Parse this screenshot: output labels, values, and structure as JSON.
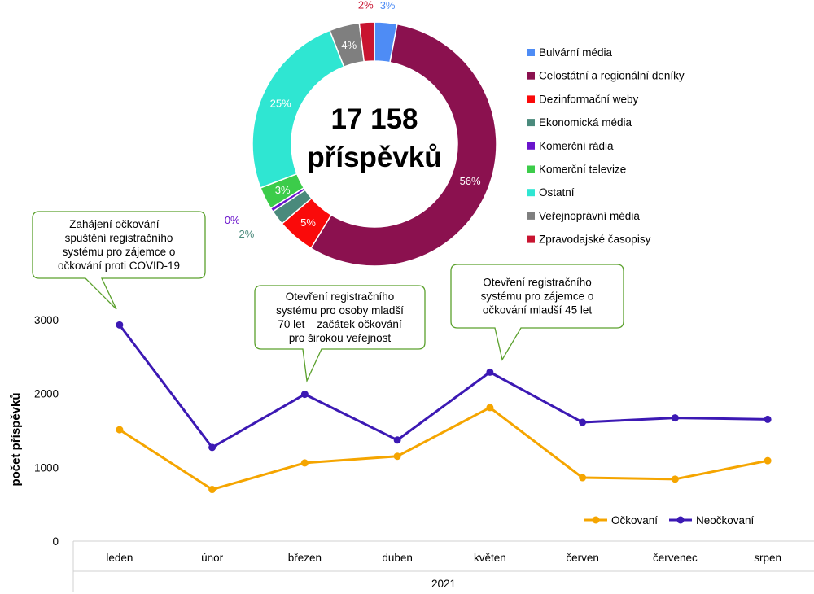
{
  "donut": {
    "center_line1": "17 158",
    "center_line2": "příspěvků"
  },
  "legend_items": [
    {
      "label": "Bulvární média",
      "color": "#4e8cf5"
    },
    {
      "label": "Celostátní a regionální deníky",
      "color": "#8b114f"
    },
    {
      "label": "Dezinformační weby",
      "color": "#fa0a0a"
    },
    {
      "label": "Ekonomická média",
      "color": "#4a8a7c"
    },
    {
      "label": "Komerční rádia",
      "color": "#6a14cc"
    },
    {
      "label": "Komerční televize",
      "color": "#3ccc4a"
    },
    {
      "label": "Ostatní",
      "color": "#2fe6d2"
    },
    {
      "label": "Veřejnoprávní média",
      "color": "#7f7f7f"
    },
    {
      "label": "Zpravodajské časopisy",
      "color": "#c81430"
    }
  ],
  "callouts": [
    {
      "lines": [
        "Zahájení očkování –",
        "spuštění registračního",
        "systému pro zájemce o",
        "očkování proti COVID-19"
      ]
    },
    {
      "lines": [
        "Otevření registračního",
        "systému pro osoby mladší",
        "70 let – začátek očkování",
        "pro širokou veřejnost"
      ]
    },
    {
      "lines": [
        "Otevření registračního",
        "systému pro zájemce o",
        "očkování mladší 45 let"
      ]
    }
  ],
  "chart_data": [
    {
      "type": "pie",
      "labels": [
        "Bulvární média",
        "Celostátní a regionální deníky",
        "Dezinformační weby",
        "Ekonomická média",
        "Komerční rádia",
        "Komerční televize",
        "Ostatní",
        "Veřejnoprávní média",
        "Zpravodajské časopisy"
      ],
      "values": [
        3,
        56,
        5,
        2,
        0.5,
        3,
        25,
        4,
        2
      ],
      "value_labels": [
        "3%",
        "56%",
        "5%",
        "2%",
        "0%",
        "3%",
        "25%",
        "4%",
        "2%"
      ],
      "colors": [
        "#4e8cf5",
        "#8b114f",
        "#fa0a0a",
        "#4a8a7c",
        "#6a14cc",
        "#3ccc4a",
        "#2fe6d2",
        "#7f7f7f",
        "#c81430"
      ],
      "donut": true,
      "legend": "right"
    },
    {
      "type": "line",
      "categories": [
        "leden",
        "únor",
        "březen",
        "duben",
        "květen",
        "červen",
        "červenec",
        "srpen"
      ],
      "series": [
        {
          "name": "Očkovaní",
          "color": "#f5a500",
          "values": [
            1510,
            700,
            1060,
            1150,
            1810,
            860,
            840,
            1090
          ]
        },
        {
          "name": "Neočkovaní",
          "color": "#3c19b4",
          "values": [
            2930,
            1270,
            1990,
            1370,
            2290,
            1610,
            1670,
            1650
          ]
        }
      ],
      "xlabel": "2021",
      "ylabel": "počet příspěvků",
      "yticks": [
        "0",
        "1000",
        "2000",
        "3000"
      ],
      "ylim": [
        0,
        3000
      ],
      "legend": "bottom-right"
    }
  ]
}
